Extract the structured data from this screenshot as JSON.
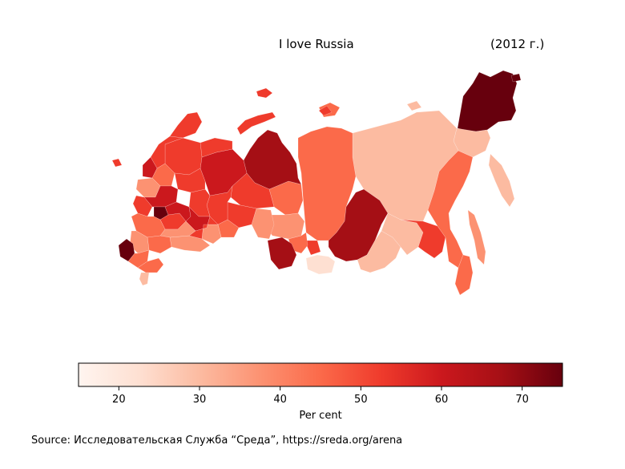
{
  "title": "I love Russia",
  "year_label": "(2012 г.)",
  "colorbar": {
    "label": "Per cent",
    "range": [
      15,
      75
    ],
    "ticks": [
      "20",
      "30",
      "40",
      "50",
      "60",
      "70"
    ],
    "colormap": [
      "#fff5f0",
      "#fee0d2",
      "#fcbba1",
      "#fc9272",
      "#fb6a4a",
      "#ef3b2c",
      "#cb181d",
      "#a50f15",
      "#67000d"
    ]
  },
  "source": "Source: Исследовательская Служба “Среда”, https://sreda.org/arena"
}
